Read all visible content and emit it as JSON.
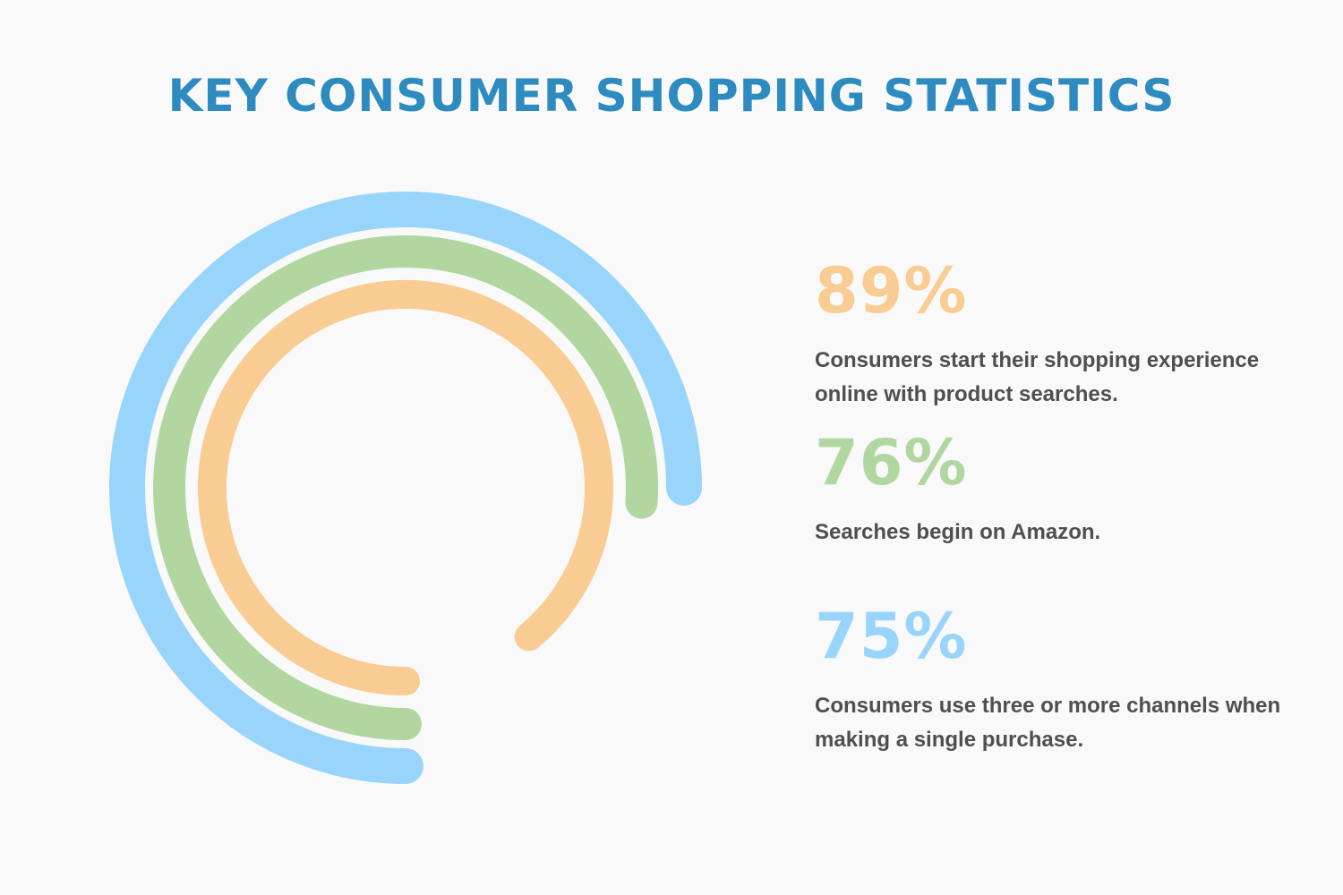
{
  "title": "KEY CONSUMER SHOPPING STATISTICS",
  "colors": {
    "background": "#f9f9f9",
    "title": "#2e8bc0",
    "text": "#4f4f4f",
    "orange": "#f8cc92",
    "green": "#b1d69f",
    "blue": "#99d5fb"
  },
  "stats": [
    {
      "value": "89%",
      "description": "Consumers start their shopping experience online with product searches.",
      "color": "#f8cc92"
    },
    {
      "value": "76%",
      "description": "Searches begin on Amazon.",
      "color": "#b1d69f"
    },
    {
      "value": "75%",
      "description": "Consumers use three or more channels when making a single purchase.",
      "color": "#99d5fb"
    }
  ],
  "chart_data": {
    "type": "radial-bar",
    "title": "KEY CONSUMER SHOPPING STATISTICS",
    "categories": [
      "Consumers start their shopping experience online with product searches.",
      "Searches begin on Amazon.",
      "Consumers use three or more channels when making a single purchase."
    ],
    "values": [
      89,
      76,
      75
    ],
    "unit": "%",
    "series_colors": [
      "#f8cc92",
      "#b1d69f",
      "#99d5fb"
    ],
    "ring_order": "inner-to-outer: 89% (orange), 76% (green), 75% (blue)",
    "legend": "none; values shown as large colored labels on the right"
  }
}
